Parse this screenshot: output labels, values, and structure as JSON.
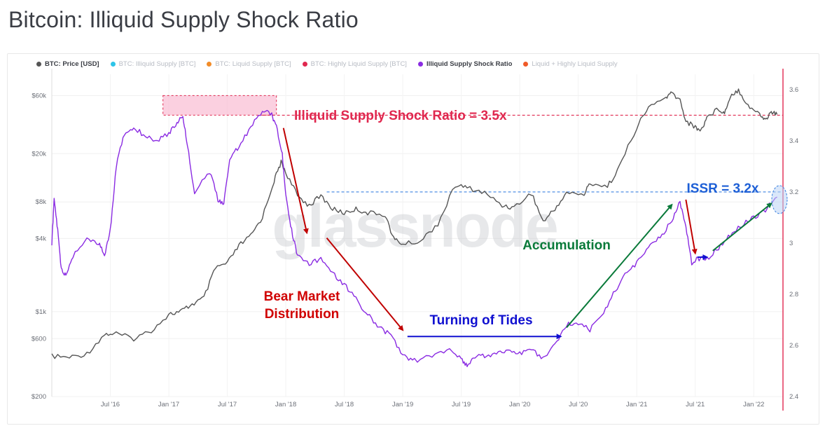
{
  "page": {
    "title": "Bitcoin: Illiquid Supply Shock Ratio"
  },
  "legend": [
    {
      "label": "BTC: Price [USD]",
      "color": "#555555",
      "active": true
    },
    {
      "label": "BTC: Illiquid Supply [BTC]",
      "color": "#2ec4e8",
      "active": false
    },
    {
      "label": "BTC: Liquid Supply [BTC]",
      "color": "#f28c28",
      "active": false
    },
    {
      "label": "BTC: Highly Liquid Supply [BTC]",
      "color": "#e0284f",
      "active": false
    },
    {
      "label": "Illiquid Supply Shock Ratio",
      "color": "#8a2be2",
      "active": true
    },
    {
      "label": "Liquid + Highly Liquid Supply",
      "color": "#f05a28",
      "active": false
    }
  ],
  "watermark": "glassnode",
  "chart_data": {
    "type": "line",
    "title": "Bitcoin: Illiquid Supply Shock Ratio",
    "x_range": [
      2016.0,
      2022.25
    ],
    "x_ticks": [
      {
        "label": "Jul '16",
        "t": 2016.5
      },
      {
        "label": "Jan '17",
        "t": 2017.0
      },
      {
        "label": "Jul '17",
        "t": 2017.5
      },
      {
        "label": "Jan '18",
        "t": 2018.0
      },
      {
        "label": "Jul '18",
        "t": 2018.5
      },
      {
        "label": "Jan '19",
        "t": 2019.0
      },
      {
        "label": "Jul '19",
        "t": 2019.5
      },
      {
        "label": "Jan '20",
        "t": 2020.0
      },
      {
        "label": "Jul '20",
        "t": 2020.5
      },
      {
        "label": "Jan '21",
        "t": 2021.0
      },
      {
        "label": "Jul '21",
        "t": 2021.5
      },
      {
        "label": "Jan '22",
        "t": 2022.0
      }
    ],
    "left_axis": {
      "scale": "log",
      "ylim": [
        200,
        90000
      ],
      "ticks": [
        {
          "label": "$200",
          "v": 200
        },
        {
          "label": "$600",
          "v": 600
        },
        {
          "label": "$1k",
          "v": 1000
        },
        {
          "label": "$4k",
          "v": 4000
        },
        {
          "label": "$8k",
          "v": 8000
        },
        {
          "label": "$20k",
          "v": 20000
        },
        {
          "label": "$60k",
          "v": 60000
        }
      ]
    },
    "right_axis": {
      "scale": "linear",
      "ylim": [
        2.4,
        3.66
      ],
      "ticks": [
        {
          "label": "2.4",
          "v": 2.4
        },
        {
          "label": "2.6",
          "v": 2.6
        },
        {
          "label": "2.8",
          "v": 2.8
        },
        {
          "label": "3",
          "v": 3.0
        },
        {
          "label": "3.2",
          "v": 3.2
        },
        {
          "label": "3.4",
          "v": 3.4
        },
        {
          "label": "3.6",
          "v": 3.6
        }
      ]
    },
    "series": [
      {
        "name": "BTC: Price [USD]",
        "axis": "left",
        "color": "#555555",
        "points": [
          [
            2016.0,
            430
          ],
          [
            2016.15,
            420
          ],
          [
            2016.3,
            450
          ],
          [
            2016.45,
            650
          ],
          [
            2016.55,
            660
          ],
          [
            2016.7,
            600
          ],
          [
            2016.85,
            700
          ],
          [
            2017.0,
            950
          ],
          [
            2017.1,
            1000
          ],
          [
            2017.2,
            1150
          ],
          [
            2017.3,
            1300
          ],
          [
            2017.4,
            2300
          ],
          [
            2017.5,
            2500
          ],
          [
            2017.6,
            3500
          ],
          [
            2017.7,
            4200
          ],
          [
            2017.8,
            6000
          ],
          [
            2017.9,
            12000
          ],
          [
            2017.96,
            17000
          ],
          [
            2018.0,
            14000
          ],
          [
            2018.1,
            9000
          ],
          [
            2018.2,
            7500
          ],
          [
            2018.3,
            9000
          ],
          [
            2018.4,
            7000
          ],
          [
            2018.5,
            6500
          ],
          [
            2018.6,
            7000
          ],
          [
            2018.7,
            6500
          ],
          [
            2018.85,
            6300
          ],
          [
            2018.92,
            4000
          ],
          [
            2019.0,
            3600
          ],
          [
            2019.15,
            3800
          ],
          [
            2019.3,
            5300
          ],
          [
            2019.45,
            11000
          ],
          [
            2019.55,
            10500
          ],
          [
            2019.7,
            9500
          ],
          [
            2019.85,
            7500
          ],
          [
            2019.95,
            7200
          ],
          [
            2020.1,
            9500
          ],
          [
            2020.2,
            5500
          ],
          [
            2020.3,
            7000
          ],
          [
            2020.4,
            9500
          ],
          [
            2020.55,
            9200
          ],
          [
            2020.6,
            11500
          ],
          [
            2020.75,
            10700
          ],
          [
            2020.85,
            15500
          ],
          [
            2021.0,
            33000
          ],
          [
            2021.1,
            48000
          ],
          [
            2021.25,
            58000
          ],
          [
            2021.3,
            63000
          ],
          [
            2021.37,
            55000
          ],
          [
            2021.42,
            37000
          ],
          [
            2021.5,
            33000
          ],
          [
            2021.55,
            31000
          ],
          [
            2021.6,
            40000
          ],
          [
            2021.7,
            47000
          ],
          [
            2021.75,
            43000
          ],
          [
            2021.8,
            60000
          ],
          [
            2021.87,
            67000
          ],
          [
            2021.95,
            50000
          ],
          [
            2022.05,
            42000
          ],
          [
            2022.1,
            38000
          ],
          [
            2022.15,
            44000
          ],
          [
            2022.2,
            42000
          ]
        ]
      },
      {
        "name": "Illiquid Supply Shock Ratio",
        "axis": "right",
        "color": "#8a2be2",
        "points": [
          [
            2016.0,
            3.0
          ],
          [
            2016.02,
            3.17
          ],
          [
            2016.05,
            3.05
          ],
          [
            2016.08,
            2.9
          ],
          [
            2016.12,
            2.87
          ],
          [
            2016.18,
            2.95
          ],
          [
            2016.3,
            3.02
          ],
          [
            2016.4,
            3.0
          ],
          [
            2016.45,
            2.95
          ],
          [
            2016.5,
            3.05
          ],
          [
            2016.55,
            3.3
          ],
          [
            2016.62,
            3.43
          ],
          [
            2016.7,
            3.45
          ],
          [
            2016.8,
            3.42
          ],
          [
            2016.9,
            3.4
          ],
          [
            2017.0,
            3.43
          ],
          [
            2017.07,
            3.47
          ],
          [
            2017.12,
            3.5
          ],
          [
            2017.16,
            3.38
          ],
          [
            2017.22,
            3.2
          ],
          [
            2017.35,
            3.28
          ],
          [
            2017.42,
            3.17
          ],
          [
            2017.47,
            3.15
          ],
          [
            2017.52,
            3.33
          ],
          [
            2017.6,
            3.38
          ],
          [
            2017.7,
            3.45
          ],
          [
            2017.8,
            3.52
          ],
          [
            2017.88,
            3.5
          ],
          [
            2017.92,
            3.46
          ],
          [
            2017.97,
            3.35
          ],
          [
            2018.0,
            3.18
          ],
          [
            2018.05,
            3.05
          ],
          [
            2018.1,
            2.95
          ],
          [
            2018.2,
            2.92
          ],
          [
            2018.3,
            2.94
          ],
          [
            2018.4,
            2.88
          ],
          [
            2018.5,
            2.84
          ],
          [
            2018.6,
            2.78
          ],
          [
            2018.7,
            2.72
          ],
          [
            2018.8,
            2.67
          ],
          [
            2018.9,
            2.64
          ],
          [
            2019.0,
            2.56
          ],
          [
            2019.1,
            2.54
          ],
          [
            2019.25,
            2.56
          ],
          [
            2019.4,
            2.58
          ],
          [
            2019.5,
            2.55
          ],
          [
            2019.55,
            2.52
          ],
          [
            2019.6,
            2.55
          ],
          [
            2019.7,
            2.56
          ],
          [
            2019.8,
            2.57
          ],
          [
            2019.9,
            2.58
          ],
          [
            2020.0,
            2.57
          ],
          [
            2020.1,
            2.58
          ],
          [
            2020.2,
            2.55
          ],
          [
            2020.3,
            2.6
          ],
          [
            2020.4,
            2.68
          ],
          [
            2020.5,
            2.69
          ],
          [
            2020.6,
            2.66
          ],
          [
            2020.7,
            2.72
          ],
          [
            2020.8,
            2.8
          ],
          [
            2020.9,
            2.88
          ],
          [
            2021.0,
            2.92
          ],
          [
            2021.1,
            2.99
          ],
          [
            2021.2,
            3.02
          ],
          [
            2021.3,
            3.09
          ],
          [
            2021.37,
            3.16
          ],
          [
            2021.42,
            3.07
          ],
          [
            2021.47,
            2.92
          ],
          [
            2021.52,
            2.94
          ],
          [
            2021.6,
            2.94
          ],
          [
            2021.7,
            2.98
          ],
          [
            2021.8,
            3.03
          ],
          [
            2021.9,
            3.07
          ],
          [
            2022.0,
            3.1
          ],
          [
            2022.1,
            3.13
          ],
          [
            2022.2,
            3.18
          ]
        ]
      }
    ],
    "reference_lines": [
      {
        "name": "issr-3.5x-reference",
        "axis": "right",
        "v": 3.5,
        "from": 2017.8,
        "to": 2022.25,
        "color": "#e0284f"
      },
      {
        "name": "issr-3.2x-reference",
        "axis": "right",
        "v": 3.2,
        "from": 2018.35,
        "to": 2022.25,
        "color": "#3b82e0"
      }
    ],
    "annotations": [
      {
        "name": "issr-3.5x-label",
        "text": "Illiquid Supply Shock Ratio = 3.5x",
        "color": "#e0284f"
      },
      {
        "name": "bear-market-label-line1",
        "text": "Bear Market",
        "color": "#d00000"
      },
      {
        "name": "bear-market-label-line2",
        "text": "Distribution",
        "color": "#d00000"
      },
      {
        "name": "turning-of-tides-label",
        "text": "Turning of Tides",
        "color": "#1010d0"
      },
      {
        "name": "accumulation-label",
        "text": "Accumulation",
        "color": "#0a7a3a"
      },
      {
        "name": "issr-3.2x-label",
        "text": "ISSR = 3.2x",
        "color": "#1d5fd6"
      }
    ]
  }
}
